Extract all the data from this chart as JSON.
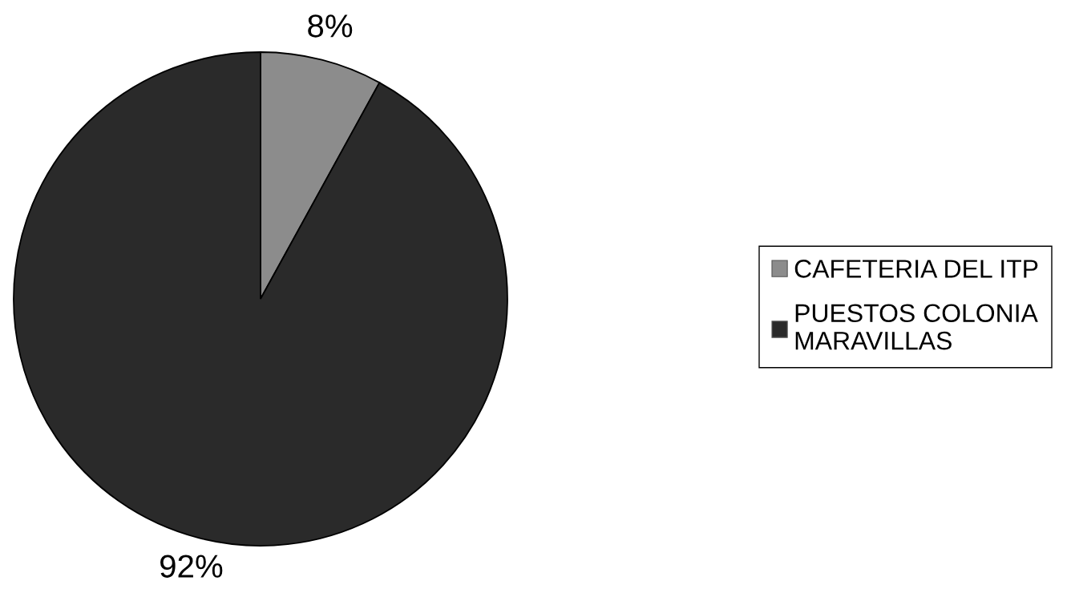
{
  "chart_data": {
    "type": "pie",
    "categories": [
      "CAFETERIA DEL ITP",
      "PUESTOS COLONIA\nMARAVILLAS"
    ],
    "values": [
      8,
      92
    ],
    "value_labels": [
      "8%",
      "92%"
    ],
    "colors": [
      "#8c8c8c",
      "#2a2a2a"
    ],
    "legend": "right"
  }
}
